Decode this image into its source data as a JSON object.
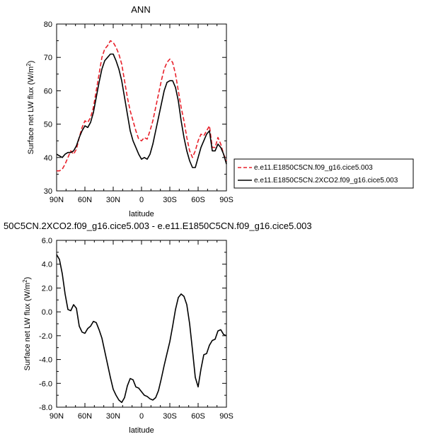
{
  "chart_data": [
    {
      "type": "line",
      "title": "ANN",
      "xlabel": "latitude",
      "ylabel": "Surface net LW flux (W/m",
      "ylabel_sup": "2",
      "ylabel_close": ")",
      "xlim": [
        90,
        -90
      ],
      "ylim": [
        30,
        80
      ],
      "xticks": [
        90,
        60,
        30,
        0,
        -30,
        -60,
        -90
      ],
      "xtick_labels": [
        "90N",
        "60N",
        "30N",
        "0",
        "30S",
        "60S",
        "90S"
      ],
      "yticks": [
        30,
        40,
        50,
        60,
        70,
        80
      ],
      "ytick_labels": [
        "30",
        "40",
        "50",
        "60",
        "70",
        "80"
      ],
      "grid": false,
      "legend": "right",
      "series": [
        {
          "name": "e.e11.E1850C5CN.f09_g16.cice5.003",
          "color": "#e8202a",
          "dash": "dashed",
          "x": [
            90,
            87,
            84,
            81,
            78,
            75,
            72,
            69,
            66,
            63,
            60,
            57,
            54,
            51,
            48,
            45,
            42,
            39,
            36,
            33,
            30,
            27,
            24,
            21,
            18,
            15,
            12,
            9,
            6,
            3,
            0,
            -3,
            -6,
            -9,
            -12,
            -15,
            -18,
            -21,
            -24,
            -27,
            -30,
            -33,
            -36,
            -39,
            -42,
            -45,
            -48,
            -51,
            -54,
            -57,
            -60,
            -63,
            -66,
            -69,
            -72,
            -75,
            -78,
            -81,
            -84,
            -87,
            -90
          ],
          "y": [
            36,
            36,
            36.5,
            38,
            40,
            42,
            41,
            42.5,
            46,
            49,
            51,
            50.5,
            52,
            55,
            60,
            65,
            70,
            72.5,
            73.5,
            75,
            74.5,
            73,
            71,
            68,
            63,
            58,
            54,
            51,
            48,
            45.5,
            45,
            46,
            45.5,
            48,
            51,
            55,
            59,
            63,
            66.5,
            68.5,
            69.5,
            68.5,
            65,
            60,
            55,
            51,
            46,
            42,
            40,
            42,
            45,
            47,
            46.5,
            48,
            49.5,
            43,
            43,
            46,
            44,
            41,
            39
          ]
        },
        {
          "name": "e.e11.E1850C5CN.2XCO2.f09_g16.cice5.003",
          "color": "#000000",
          "dash": "solid",
          "x": [
            90,
            87,
            84,
            81,
            78,
            75,
            72,
            69,
            66,
            63,
            60,
            57,
            54,
            51,
            48,
            45,
            42,
            39,
            36,
            33,
            30,
            27,
            24,
            21,
            18,
            15,
            12,
            9,
            6,
            3,
            0,
            -3,
            -6,
            -9,
            -12,
            -15,
            -18,
            -21,
            -24,
            -27,
            -30,
            -33,
            -36,
            -39,
            -42,
            -45,
            -48,
            -51,
            -54,
            -57,
            -60,
            -63,
            -66,
            -69,
            -72,
            -75,
            -78,
            -81,
            -84,
            -87,
            -90
          ],
          "y": [
            41,
            40.5,
            40,
            41,
            41.5,
            41.5,
            42,
            43.5,
            46,
            48,
            49.5,
            49,
            50.5,
            53.5,
            58,
            62.5,
            66.5,
            69,
            70,
            71,
            71,
            69,
            66.5,
            63,
            58,
            53,
            48,
            45,
            43,
            41,
            39.5,
            40,
            39.5,
            41,
            44,
            48,
            52,
            56,
            60,
            62.5,
            63,
            63,
            61,
            57,
            51,
            46,
            42,
            39,
            37,
            37,
            40,
            43,
            45,
            47,
            48,
            42,
            42,
            44,
            43,
            41,
            38
          ]
        }
      ]
    },
    {
      "type": "line",
      "title": "50C5CN.2XCO2.f09_g16.cice5.003 - e.e11.E1850C5CN.f09_g16.cice5.003",
      "xlabel": "latitude",
      "ylabel": "Surface net LW flux (W/m",
      "ylabel_sup": "2",
      "ylabel_close": ")",
      "xlim": [
        90,
        -90
      ],
      "ylim": [
        -8,
        6
      ],
      "xticks": [
        90,
        60,
        30,
        0,
        -30,
        -60,
        -90
      ],
      "xtick_labels": [
        "90N",
        "60N",
        "30N",
        "0",
        "30S",
        "60S",
        "90S"
      ],
      "yticks": [
        -8,
        -6,
        -4,
        -2,
        0,
        2,
        4,
        6
      ],
      "ytick_labels": [
        "-8.0",
        "-6.0",
        "-4.0",
        "-2.0",
        "0.0",
        "2.0",
        "4.0",
        "6.0"
      ],
      "grid": false,
      "series": [
        {
          "color": "#000000",
          "dash": "solid",
          "x": [
            90,
            87,
            84,
            81,
            78,
            75,
            72,
            69,
            66,
            63,
            60,
            57,
            54,
            51,
            48,
            45,
            42,
            39,
            36,
            33,
            30,
            27,
            24,
            21,
            18,
            15,
            12,
            9,
            6,
            3,
            0,
            -3,
            -6,
            -9,
            -12,
            -15,
            -18,
            -21,
            -24,
            -27,
            -30,
            -33,
            -36,
            -39,
            -42,
            -45,
            -48,
            -51,
            -54,
            -57,
            -60,
            -63,
            -66,
            -69,
            -72,
            -75,
            -78,
            -81,
            -84,
            -87,
            -90
          ],
          "y": [
            4.8,
            4.4,
            3.2,
            1.5,
            0.2,
            0.1,
            0.6,
            0.3,
            -1.2,
            -1.7,
            -1.8,
            -1.4,
            -1.2,
            -0.8,
            -0.9,
            -1.5,
            -2.2,
            -3.3,
            -4.4,
            -5.5,
            -6.5,
            -7.0,
            -7.4,
            -7.6,
            -7.2,
            -6.2,
            -5.6,
            -5.7,
            -6.3,
            -6.4,
            -6.7,
            -7.0,
            -7.1,
            -7.3,
            -7.4,
            -7.2,
            -6.6,
            -5.6,
            -4.5,
            -3.5,
            -2.5,
            -1.2,
            0.2,
            1.2,
            1.5,
            1.3,
            0.6,
            -1.0,
            -3.2,
            -5.5,
            -6.3,
            -4.8,
            -3.6,
            -3.5,
            -2.8,
            -2.4,
            -2.3,
            -1.6,
            -1.5,
            -1.9,
            -2.0
          ]
        }
      ]
    }
  ]
}
